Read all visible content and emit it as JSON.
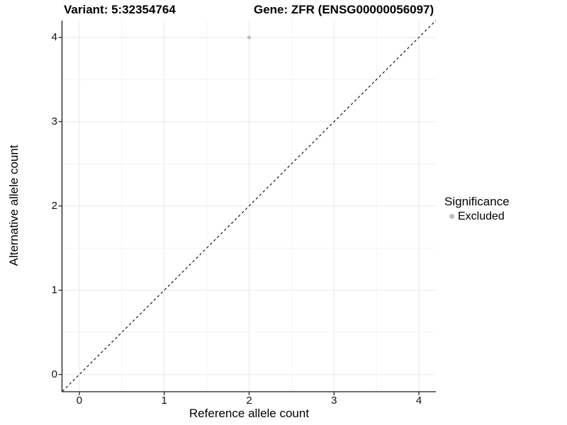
{
  "titles": {
    "variant": "Variant: 5:32354764",
    "gene": "Gene: ZFR (ENSG00000056097)"
  },
  "axes": {
    "x": {
      "label": "Reference allele count"
    },
    "y": {
      "label": "Alternative allele count"
    }
  },
  "legend": {
    "title": "Significance",
    "items": [
      {
        "label": "Excluded",
        "color": "#bdbdbd",
        "marker": "circle-icon"
      }
    ]
  },
  "colors": {
    "background": "#ffffff",
    "grid_major": "#e8e8e8",
    "grid_minor": "#f3f3f3",
    "axis_line": "#1a1a1a",
    "tick_text": "#111111",
    "point": "#bdbdbd",
    "reference_line": "#000000"
  },
  "chart_data": {
    "type": "scatter",
    "title": "Variant: 5:32354764    Gene: ZFR (ENSG00000056097)",
    "xlabel": "Reference allele count",
    "ylabel": "Alternative allele count",
    "xlim": [
      -0.2,
      4.2
    ],
    "ylim": [
      -0.2,
      4.2
    ],
    "x_ticks": [
      0,
      1,
      2,
      3,
      4
    ],
    "y_ticks": [
      0,
      1,
      2,
      3,
      4
    ],
    "x_minor_ticks": [
      0.5,
      1.5,
      2.5,
      3.5
    ],
    "y_minor_ticks": [
      0.5,
      1.5,
      2.5,
      3.5
    ],
    "grid": "major+minor",
    "legend_position": "right",
    "legend_title": "Significance",
    "series": [
      {
        "name": "Excluded",
        "color": "#bdbdbd",
        "points": [
          {
            "x": 2,
            "y": 4
          }
        ]
      }
    ],
    "reference_line": {
      "slope": 1,
      "intercept": 0,
      "style": "dashed",
      "color": "#000000"
    }
  }
}
